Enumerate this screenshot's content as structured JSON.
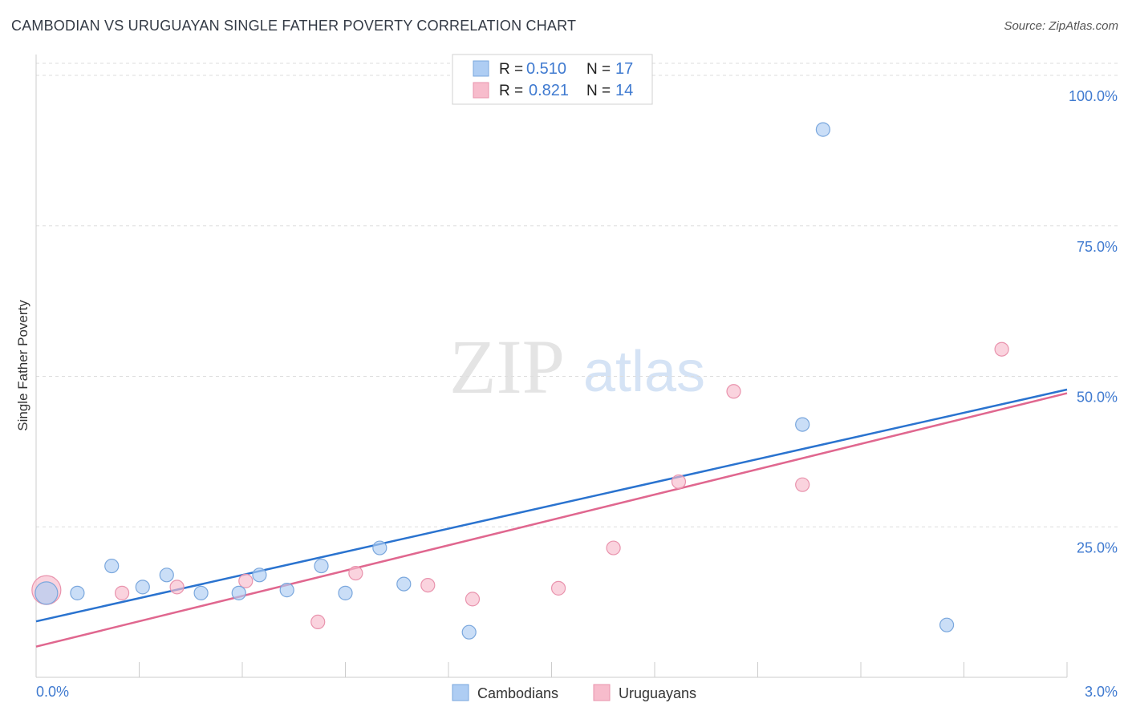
{
  "title": "CAMBODIAN VS URUGUAYAN SINGLE FATHER POVERTY CORRELATION CHART",
  "source": "Source: ZipAtlas.com",
  "watermark": {
    "zip": "ZIP",
    "atlas": "atlas"
  },
  "colors": {
    "blue_fill": "#aecdf3",
    "blue_stroke": "#7aa7dd",
    "blue_line": "#2a73cf",
    "pink_fill": "#f7bccc",
    "pink_stroke": "#e993ad",
    "pink_line": "#e0678f",
    "axis_text": "#3f7ad0",
    "grid": "#dddddd"
  },
  "legend": {
    "rows": [
      {
        "r_label": "R =",
        "r_value": "0.510",
        "n_label": "N =",
        "n_value": "17"
      },
      {
        "r_label": "R =",
        "r_value": "0.821",
        "n_label": "N =",
        "n_value": "14"
      }
    ]
  },
  "chart_data": {
    "type": "scatter",
    "title": "CAMBODIAN VS URUGUAYAN SINGLE FATHER POVERTY CORRELATION CHART",
    "xlabel": "",
    "ylabel": "Single Father Poverty",
    "xlim": [
      0,
      3.0
    ],
    "ylim": [
      0,
      102
    ],
    "x_tick_labels": [
      "0.0%",
      "3.0%"
    ],
    "y_ticks": [
      25,
      50,
      75,
      100
    ],
    "y_tick_labels": [
      "25.0%",
      "50.0%",
      "75.0%",
      "100.0%"
    ],
    "grid": true,
    "legend_position": "top-center",
    "series": [
      {
        "name": "Cambodians",
        "points": [
          {
            "x": 0.03,
            "y": 14.0,
            "s": "large"
          },
          {
            "x": 0.12,
            "y": 14.0
          },
          {
            "x": 0.22,
            "y": 18.5
          },
          {
            "x": 0.31,
            "y": 15.0
          },
          {
            "x": 0.38,
            "y": 17.0
          },
          {
            "x": 0.48,
            "y": 14.0
          },
          {
            "x": 0.59,
            "y": 14.0
          },
          {
            "x": 0.65,
            "y": 17.0
          },
          {
            "x": 0.73,
            "y": 14.5
          },
          {
            "x": 0.83,
            "y": 18.5
          },
          {
            "x": 0.9,
            "y": 14.0
          },
          {
            "x": 1.0,
            "y": 21.5
          },
          {
            "x": 1.07,
            "y": 15.5
          },
          {
            "x": 1.26,
            "y": 7.5
          },
          {
            "x": 2.23,
            "y": 42.0
          },
          {
            "x": 2.29,
            "y": 91.0
          },
          {
            "x": 2.65,
            "y": 8.7
          }
        ],
        "trendline": {
          "x": [
            0,
            3.0
          ],
          "y": [
            9.3,
            47.8
          ]
        }
      },
      {
        "name": "Uruguayans",
        "points": [
          {
            "x": 0.03,
            "y": 14.5,
            "s": "large"
          },
          {
            "x": 0.25,
            "y": 14.0
          },
          {
            "x": 0.41,
            "y": 15.0
          },
          {
            "x": 0.61,
            "y": 16.0
          },
          {
            "x": 0.82,
            "y": 9.2
          },
          {
            "x": 0.93,
            "y": 17.3
          },
          {
            "x": 1.14,
            "y": 15.3
          },
          {
            "x": 1.27,
            "y": 13.0
          },
          {
            "x": 1.52,
            "y": 14.8
          },
          {
            "x": 1.68,
            "y": 21.5
          },
          {
            "x": 1.87,
            "y": 32.5
          },
          {
            "x": 2.03,
            "y": 47.5
          },
          {
            "x": 2.23,
            "y": 32.0
          },
          {
            "x": 2.81,
            "y": 54.5
          }
        ],
        "trendline": {
          "x": [
            0,
            3.0
          ],
          "y": [
            5.1,
            47.2
          ]
        }
      }
    ]
  }
}
